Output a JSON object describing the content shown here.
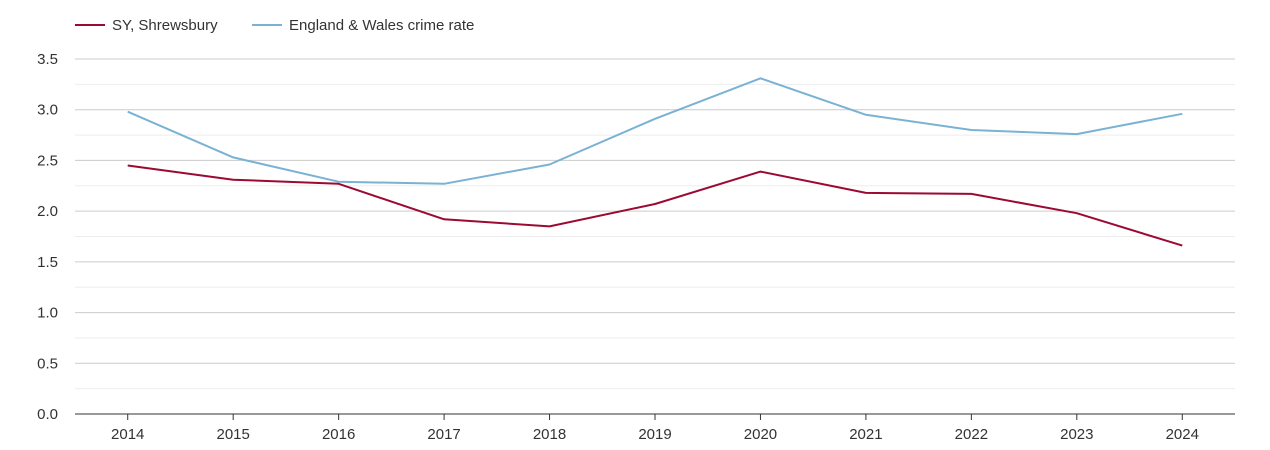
{
  "chart_data": {
    "type": "line",
    "title": "",
    "xlabel": "",
    "ylabel": "",
    "categories": [
      "2014",
      "2015",
      "2016",
      "2017",
      "2018",
      "2019",
      "2020",
      "2021",
      "2022",
      "2023",
      "2024"
    ],
    "ylim": [
      0,
      3.5
    ],
    "yticks": [
      "0.0",
      "0.5",
      "1.0",
      "1.5",
      "2.0",
      "2.5",
      "3.0",
      "3.5"
    ],
    "grid": true,
    "legend_position": "top-left",
    "series": [
      {
        "name": "SY, Shrewsbury",
        "color": "#9b0a33",
        "values": [
          2.45,
          2.31,
          2.27,
          1.92,
          1.85,
          2.07,
          2.39,
          2.18,
          2.17,
          1.98,
          1.66
        ]
      },
      {
        "name": "England & Wales crime rate",
        "color": "#7ab2d4",
        "values": [
          2.98,
          2.53,
          2.29,
          2.27,
          2.46,
          2.91,
          3.31,
          2.95,
          2.8,
          2.76,
          2.96
        ]
      }
    ]
  }
}
